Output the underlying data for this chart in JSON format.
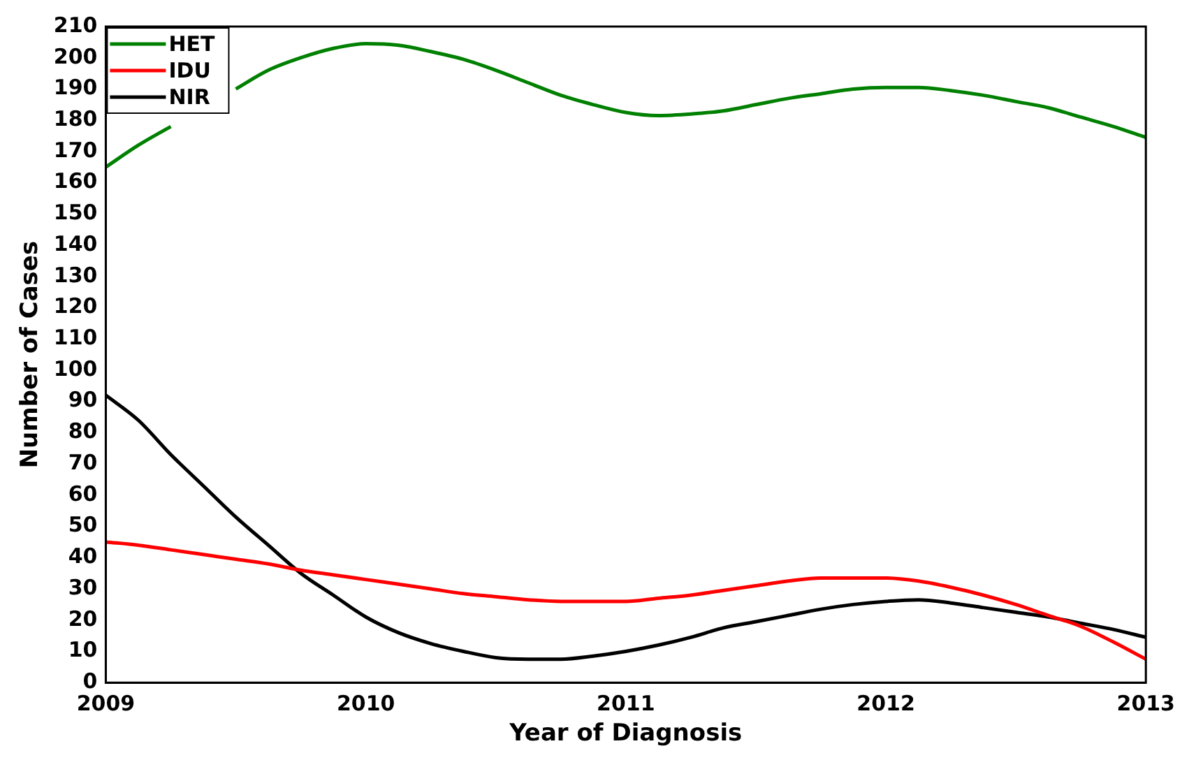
{
  "chart_data": {
    "type": "line",
    "xlabel": "Year of Diagnosis",
    "ylabel": "Number of Cases",
    "x": [
      2009,
      2009.125,
      2009.25,
      2009.375,
      2009.5,
      2009.625,
      2009.75,
      2009.875,
      2010,
      2010.125,
      2010.25,
      2010.375,
      2010.5,
      2010.625,
      2010.75,
      2010.875,
      2011,
      2011.125,
      2011.25,
      2011.375,
      2011.5,
      2011.625,
      2011.75,
      2011.875,
      2012,
      2012.125,
      2012.25,
      2012.375,
      2012.5,
      2012.625,
      2012.75,
      2012.875,
      2013
    ],
    "series": [
      {
        "name": "HET",
        "color": "#008000",
        "values": [
          165,
          172,
          178,
          null,
          190,
          196,
          200,
          203,
          204.5,
          204,
          202,
          199.5,
          196,
          192,
          188,
          185,
          182.5,
          181.5,
          182,
          183,
          185,
          187,
          188.5,
          190,
          190.5,
          190.5,
          189.5,
          188,
          186,
          184,
          181,
          178,
          174.5
        ]
      },
      {
        "name": "IDU",
        "color": "#ff0000",
        "values": [
          45,
          44,
          42.5,
          41,
          39.5,
          38,
          36,
          34.5,
          33,
          31.5,
          30,
          28.5,
          27.5,
          26.5,
          26,
          26,
          26,
          27,
          28,
          29.5,
          31,
          32.5,
          33.5,
          33.5,
          33.5,
          32.5,
          30.5,
          28,
          25,
          21.5,
          18,
          13,
          7.5
        ]
      },
      {
        "name": "NIR",
        "color": "#000000",
        "values": [
          92,
          84,
          73,
          63,
          53,
          44,
          35,
          28,
          21,
          16,
          12.5,
          10,
          8,
          7.5,
          7.5,
          8.5,
          10,
          12,
          14.5,
          17.5,
          19.5,
          21.5,
          23.5,
          25,
          26,
          26.5,
          25.5,
          24,
          22.5,
          21,
          19,
          17,
          14.5
        ]
      }
    ],
    "xlim": [
      2009,
      2013
    ],
    "xticks": [
      2009,
      2010,
      2011,
      2012,
      2013
    ],
    "ylim": [
      0,
      210
    ],
    "yticks": [
      0,
      10,
      20,
      30,
      40,
      50,
      60,
      70,
      80,
      90,
      100,
      110,
      120,
      130,
      140,
      150,
      160,
      170,
      180,
      190,
      200,
      210
    ],
    "grid": false,
    "legend": "top left",
    "marker": "none",
    "line_style": "solid"
  }
}
